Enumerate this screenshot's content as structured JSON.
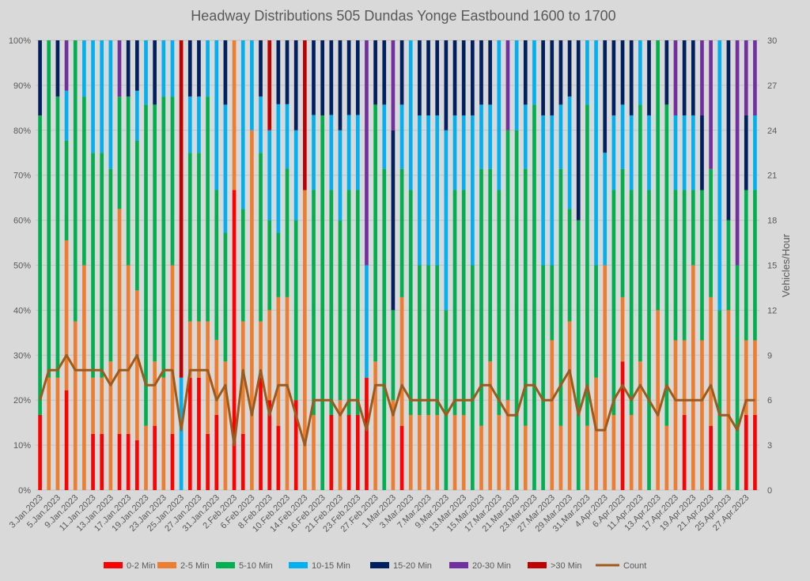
{
  "chart_data": {
    "type": "bar",
    "stacked": "percent",
    "title": "Headway Distributions 505 Dundas  Yonge Eastbound 1600 to 1700",
    "xlabel": "",
    "ylabel": "",
    "y2label": "Vehicles/Hour",
    "ylim": [
      0,
      100
    ],
    "y2lim": [
      0,
      30
    ],
    "yticks": [
      "0%",
      "10%",
      "20%",
      "30%",
      "40%",
      "50%",
      "60%",
      "70%",
      "80%",
      "90%",
      "100%"
    ],
    "y2ticks": [
      "0",
      "3",
      "6",
      "9",
      "12",
      "15",
      "18",
      "21",
      "24",
      "27",
      "30"
    ],
    "grid": true,
    "legend_position": "bottom",
    "x_tick_labels": [
      "3.Jan.2023",
      "5.Jan.2023",
      "9.Jan.2023",
      "11.Jan.2023",
      "13.Jan.2023",
      "17.Jan.2023",
      "19.Jan.2023",
      "23.Jan.2023",
      "25.Jan.2023",
      "27.Jan.2023",
      "31.Jan.2023",
      "2.Feb.2023",
      "6.Feb.2023",
      "8.Feb.2023",
      "10.Feb.2023",
      "14.Feb.2023",
      "16.Feb.2023",
      "21.Feb.2023",
      "23.Feb.2023",
      "27.Feb.2023",
      "1.Mar.2023",
      "3.Mar.2023",
      "7.Mar.2023",
      "9.Mar.2023",
      "13.Mar.2023",
      "15.Mar.2023",
      "17.Mar.2023",
      "21.Mar.2023",
      "23.Mar.2023",
      "27.Mar.2023",
      "29.Mar.2023",
      "31.Mar.2023",
      "4.Apr.2023",
      "6.Apr.2023",
      "11.Apr.2023",
      "13.Apr.2023",
      "17.Apr.2023",
      "19.Apr.2023",
      "21.Apr.2023",
      "25.Apr.2023",
      "27.Apr.2023"
    ],
    "bar_series": [
      {
        "name": "0-2 Min",
        "color": "#ff0000"
      },
      {
        "name": "2-5 Min",
        "color": "#ed7d31"
      },
      {
        "name": "5-10 Min",
        "color": "#00b050"
      },
      {
        "name": "10-15 Min",
        "color": "#00b0f0"
      },
      {
        "name": "15-20 Min",
        "color": "#002060"
      },
      {
        "name": "20-30 Min",
        "color": "#7030a0"
      },
      {
        "name": ">30 Min",
        "color": "#c00000"
      }
    ],
    "line_series": {
      "name": "Count",
      "color": "#9c5a1c",
      "axis": "secondary"
    },
    "days": [
      {
        "date": "3.Jan.2023",
        "count": 6,
        "v": [
          16.7,
          0,
          66.6,
          0,
          16.7,
          0,
          0
        ]
      },
      {
        "date": "4.Jan.2023",
        "count": 8,
        "v": [
          0,
          25,
          75,
          0,
          0,
          0,
          0
        ]
      },
      {
        "date": "5.Jan.2023",
        "count": 8,
        "v": [
          0,
          25,
          62.5,
          0,
          12.5,
          0,
          0
        ]
      },
      {
        "date": "6.Jan.2023",
        "count": 9,
        "v": [
          22.2,
          33.3,
          22.2,
          11.1,
          0,
          11.2,
          0
        ]
      },
      {
        "date": "9.Jan.2023",
        "count": 8,
        "v": [
          0,
          37.5,
          62.5,
          0,
          0,
          0,
          0
        ]
      },
      {
        "date": "10.Jan.2023",
        "count": 8,
        "v": [
          0,
          50,
          37.5,
          12.5,
          0,
          0,
          0
        ]
      },
      {
        "date": "11.Jan.2023",
        "count": 8,
        "v": [
          12.5,
          12.5,
          50,
          25,
          0,
          0,
          0
        ]
      },
      {
        "date": "12.Jan.2023",
        "count": 8,
        "v": [
          12.5,
          12.5,
          50,
          25,
          0,
          0,
          0
        ]
      },
      {
        "date": "13.Jan.2023",
        "count": 7,
        "v": [
          0,
          28.6,
          42.8,
          28.6,
          0,
          0,
          0
        ]
      },
      {
        "date": "16.Jan.2023",
        "count": 8,
        "v": [
          12.5,
          50,
          25,
          0,
          0,
          12.5,
          0
        ]
      },
      {
        "date": "17.Jan.2023",
        "count": 8,
        "v": [
          12.5,
          37.5,
          37.5,
          0,
          12.5,
          0,
          0
        ]
      },
      {
        "date": "18.Jan.2023",
        "count": 9,
        "v": [
          11.1,
          33.3,
          33.3,
          11.1,
          11.2,
          0,
          0
        ]
      },
      {
        "date": "19.Jan.2023",
        "count": 7,
        "v": [
          0,
          14.3,
          71.4,
          14.3,
          0,
          0,
          0
        ]
      },
      {
        "date": "20.Jan.2023",
        "count": 7,
        "v": [
          14.3,
          14.3,
          57.1,
          0,
          14.3,
          0,
          0
        ]
      },
      {
        "date": "23.Jan.2023",
        "count": 8,
        "v": [
          0,
          25,
          62.5,
          12.5,
          0,
          0,
          0
        ]
      },
      {
        "date": "24.Jan.2023",
        "count": 8,
        "v": [
          12.5,
          37.5,
          37.5,
          12.5,
          0,
          0,
          0
        ]
      },
      {
        "date": "25.Jan.2023",
        "count": 4,
        "v": [
          0,
          0,
          0,
          25,
          0,
          0,
          75
        ]
      },
      {
        "date": "26.Jan.2023",
        "count": 8,
        "v": [
          25,
          12.5,
          37.5,
          12.5,
          12.5,
          0,
          0
        ]
      },
      {
        "date": "27.Jan.2023",
        "count": 8,
        "v": [
          25,
          12.5,
          37.5,
          12.5,
          12.5,
          0,
          0
        ]
      },
      {
        "date": "30.Jan.2023",
        "count": 8,
        "v": [
          12.5,
          25,
          50,
          12.5,
          0,
          0,
          0
        ]
      },
      {
        "date": "31.Jan.2023",
        "count": 6,
        "v": [
          16.7,
          16.7,
          33.3,
          33.3,
          0,
          0,
          0
        ]
      },
      {
        "date": "1.Feb.2023",
        "count": 7,
        "v": [
          0,
          28.6,
          28.6,
          28.5,
          14.3,
          0,
          0
        ]
      },
      {
        "date": "2.Feb.2023",
        "count": 3,
        "v": [
          66.7,
          33.3,
          0,
          0,
          0,
          0,
          0
        ]
      },
      {
        "date": "3.Feb.2023",
        "count": 8,
        "v": [
          12.5,
          25,
          25,
          37.5,
          0,
          0,
          0
        ]
      },
      {
        "date": "6.Feb.2023",
        "count": 5,
        "v": [
          0,
          80,
          0,
          20,
          0,
          0,
          0
        ]
      },
      {
        "date": "7.Feb.2023",
        "count": 8,
        "v": [
          25,
          12.5,
          37.5,
          12.5,
          12.5,
          0,
          0
        ]
      },
      {
        "date": "8.Feb.2023",
        "count": 5,
        "v": [
          20,
          20,
          20,
          20,
          0,
          0,
          20
        ]
      },
      {
        "date": "9.Feb.2023",
        "count": 7,
        "v": [
          14.3,
          28.6,
          14.3,
          28.6,
          14.2,
          0,
          0
        ]
      },
      {
        "date": "10.Feb.2023",
        "count": 7,
        "v": [
          0,
          42.9,
          28.6,
          14.3,
          14.2,
          0,
          0
        ]
      },
      {
        "date": "13.Feb.2023",
        "count": 5,
        "v": [
          20,
          0,
          40,
          20,
          20,
          0,
          0
        ]
      },
      {
        "date": "14.Feb.2023",
        "count": 3,
        "v": [
          0,
          66.7,
          0,
          0,
          0,
          0,
          33.3
        ]
      },
      {
        "date": "15.Feb.2023",
        "count": 6,
        "v": [
          0,
          16.7,
          50,
          16.7,
          16.6,
          0,
          0
        ]
      },
      {
        "date": "16.Feb.2023",
        "count": 6,
        "v": [
          0,
          0,
          83.3,
          0,
          16.7,
          0,
          0
        ]
      },
      {
        "date": "17.Feb.2023",
        "count": 6,
        "v": [
          16.7,
          0,
          50,
          16.7,
          16.6,
          0,
          0
        ]
      },
      {
        "date": "21.Feb.2023",
        "count": 5,
        "v": [
          0,
          20,
          40,
          20,
          20,
          0,
          0
        ]
      },
      {
        "date": "22.Feb.2023",
        "count": 6,
        "v": [
          16.7,
          0,
          50,
          16.7,
          16.6,
          0,
          0
        ]
      },
      {
        "date": "23.Feb.2023",
        "count": 6,
        "v": [
          16.7,
          0,
          50,
          16.7,
          16.6,
          0,
          0
        ]
      },
      {
        "date": "24.Feb.2023",
        "count": 4,
        "v": [
          25,
          0,
          0,
          25,
          0,
          50,
          0
        ]
      },
      {
        "date": "27.Feb.2023",
        "count": 7,
        "v": [
          0,
          28.6,
          57.1,
          0,
          14.3,
          0,
          0
        ]
      },
      {
        "date": "28.Feb.2023",
        "count": 7,
        "v": [
          0,
          0,
          71.4,
          14.3,
          14.3,
          0,
          0
        ]
      },
      {
        "date": "1.Mar.2023",
        "count": 5,
        "v": [
          0,
          20,
          20,
          0,
          40,
          20,
          0
        ]
      },
      {
        "date": "2.Mar.2023",
        "count": 7,
        "v": [
          14.3,
          28.6,
          28.5,
          14.3,
          14.3,
          0,
          0
        ]
      },
      {
        "date": "3.Mar.2023",
        "count": 6,
        "v": [
          0,
          16.7,
          50,
          33.3,
          0,
          0,
          0
        ]
      },
      {
        "date": "6.Mar.2023",
        "count": 6,
        "v": [
          0,
          16.7,
          33.3,
          33.3,
          16.7,
          0,
          0
        ]
      },
      {
        "date": "7.Mar.2023",
        "count": 6,
        "v": [
          0,
          16.7,
          33.3,
          33.3,
          16.7,
          0,
          0
        ]
      },
      {
        "date": "8.Mar.2023",
        "count": 6,
        "v": [
          0,
          16.7,
          33.3,
          33.3,
          16.7,
          0,
          0
        ]
      },
      {
        "date": "9.Mar.2023",
        "count": 5,
        "v": [
          0,
          0,
          40,
          40,
          20,
          0,
          0
        ]
      },
      {
        "date": "10.Mar.2023",
        "count": 6,
        "v": [
          0,
          16.7,
          50,
          16.6,
          16.7,
          0,
          0
        ]
      },
      {
        "date": "13.Mar.2023",
        "count": 6,
        "v": [
          0,
          16.7,
          50,
          16.6,
          16.7,
          0,
          0
        ]
      },
      {
        "date": "14.Mar.2023",
        "count": 6,
        "v": [
          0,
          0,
          50,
          33.3,
          16.7,
          0,
          0
        ]
      },
      {
        "date": "15.Mar.2023",
        "count": 7,
        "v": [
          0,
          14.3,
          57.1,
          14.3,
          14.3,
          0,
          0
        ]
      },
      {
        "date": "16.Mar.2023",
        "count": 7,
        "v": [
          0,
          28.6,
          42.8,
          14.3,
          14.3,
          0,
          0
        ]
      },
      {
        "date": "17.Mar.2023",
        "count": 6,
        "v": [
          0,
          16.7,
          50,
          33.3,
          0,
          0,
          0
        ]
      },
      {
        "date": "20.Mar.2023",
        "count": 5,
        "v": [
          0,
          20,
          60,
          0,
          0,
          20,
          0
        ]
      },
      {
        "date": "21.Mar.2023",
        "count": 5,
        "v": [
          0,
          0,
          80,
          20,
          0,
          0,
          0
        ]
      },
      {
        "date": "22.Mar.2023",
        "count": 7,
        "v": [
          0,
          14.3,
          57.1,
          14.3,
          14.3,
          0,
          0
        ]
      },
      {
        "date": "23.Mar.2023",
        "count": 7,
        "v": [
          0,
          0,
          85.7,
          14.3,
          0,
          0,
          0
        ]
      },
      {
        "date": "24.Mar.2023",
        "count": 6,
        "v": [
          0,
          0,
          50,
          33.3,
          16.7,
          0,
          0
        ]
      },
      {
        "date": "27.Mar.2023",
        "count": 6,
        "v": [
          0,
          33.3,
          16.7,
          33.3,
          16.7,
          0,
          0
        ]
      },
      {
        "date": "28.Mar.2023",
        "count": 7,
        "v": [
          0,
          14.3,
          57.1,
          14.3,
          14.3,
          0,
          0
        ]
      },
      {
        "date": "29.Mar.2023",
        "count": 8,
        "v": [
          0,
          37.5,
          25,
          25,
          12.5,
          0,
          0
        ]
      },
      {
        "date": "30.Mar.2023",
        "count": 5,
        "v": [
          0,
          0,
          60,
          0,
          40,
          0,
          0
        ]
      },
      {
        "date": "31.Mar.2023",
        "count": 7,
        "v": [
          0,
          14.3,
          71.4,
          14.3,
          0,
          0,
          0
        ]
      },
      {
        "date": "3.Apr.2023",
        "count": 4,
        "v": [
          0,
          25,
          25,
          50,
          0,
          0,
          0
        ]
      },
      {
        "date": "4.Apr.2023",
        "count": 4,
        "v": [
          0,
          50,
          0,
          25,
          25,
          0,
          0
        ]
      },
      {
        "date": "5.Apr.2023",
        "count": 6,
        "v": [
          0,
          16.7,
          50,
          16.6,
          16.7,
          0,
          0
        ]
      },
      {
        "date": "6.Apr.2023",
        "count": 7,
        "v": [
          28.6,
          14.3,
          28.5,
          14.3,
          14.3,
          0,
          0
        ]
      },
      {
        "date": "10.Apr.2023",
        "count": 6,
        "v": [
          0,
          16.7,
          50,
          16.6,
          16.7,
          0,
          0
        ]
      },
      {
        "date": "11.Apr.2023",
        "count": 7,
        "v": [
          0,
          28.6,
          57.1,
          14.3,
          0,
          0,
          0
        ]
      },
      {
        "date": "12.Apr.2023",
        "count": 6,
        "v": [
          0,
          0,
          66.7,
          16.6,
          16.7,
          0,
          0
        ]
      },
      {
        "date": "13.Apr.2023",
        "count": 5,
        "v": [
          0,
          40,
          60,
          0,
          0,
          0,
          0
        ]
      },
      {
        "date": "14.Apr.2023",
        "count": 7,
        "v": [
          0,
          14.3,
          71.4,
          0,
          14.3,
          0,
          0
        ]
      },
      {
        "date": "17.Apr.2023",
        "count": 6,
        "v": [
          0,
          33.3,
          33.4,
          16.6,
          0,
          16.7,
          0
        ]
      },
      {
        "date": "18.Apr.2023",
        "count": 6,
        "v": [
          16.7,
          16.6,
          33.4,
          16.6,
          16.7,
          0,
          0
        ]
      },
      {
        "date": "19.Apr.2023",
        "count": 6,
        "v": [
          0,
          50,
          16.7,
          16.6,
          16.7,
          0,
          0
        ]
      },
      {
        "date": "20.Apr.2023",
        "count": 6,
        "v": [
          0,
          33.3,
          33.4,
          0,
          16.6,
          16.7,
          0
        ]
      },
      {
        "date": "21.Apr.2023",
        "count": 7,
        "v": [
          14.3,
          28.6,
          28.5,
          0,
          0,
          28.6,
          0
        ]
      },
      {
        "date": "24.Apr.2023",
        "count": 5,
        "v": [
          0,
          0,
          40,
          60,
          0,
          0,
          0
        ]
      },
      {
        "date": "25.Apr.2023",
        "count": 5,
        "v": [
          0,
          40,
          20,
          0,
          40,
          0,
          0
        ]
      },
      {
        "date": "26.Apr.2023",
        "count": 4,
        "v": [
          0,
          0,
          50,
          0,
          0,
          50,
          0
        ]
      },
      {
        "date": "27.Apr.2023",
        "count": 6,
        "v": [
          16.7,
          16.6,
          33.4,
          0,
          16.6,
          16.7,
          0
        ]
      },
      {
        "date": "28.Apr.2023",
        "count": 6,
        "v": [
          16.7,
          16.6,
          33.4,
          16.6,
          0,
          16.7,
          0
        ]
      }
    ]
  }
}
